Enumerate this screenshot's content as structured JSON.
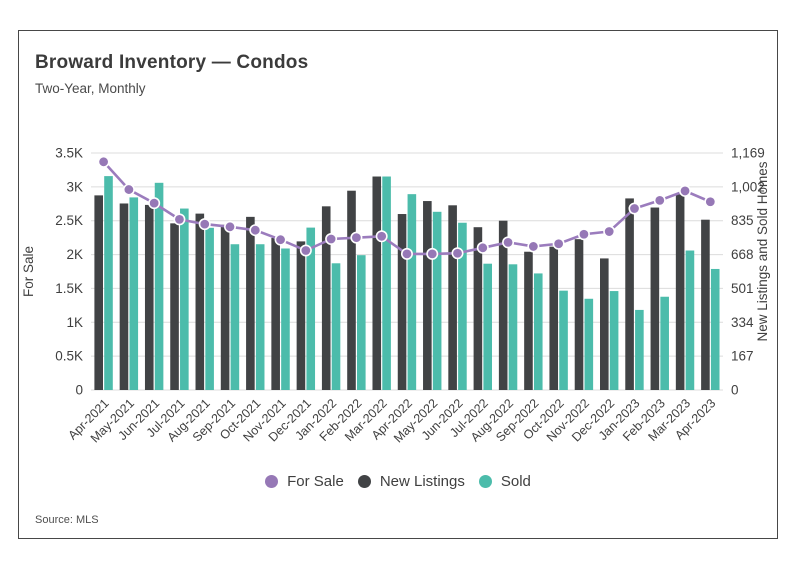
{
  "header": {
    "title": "Broward Inventory — Condos",
    "subtitle": "Two-Year, Monthly"
  },
  "source": "Source: MLS",
  "legend": [
    "For Sale",
    "New Listings",
    "Sold"
  ],
  "colors": {
    "for_sale": "#9b7cbd",
    "for_sale_marker": "#9678b6",
    "new_listings": "#414345",
    "sold": "#4cbcab",
    "gridline": "#dcdcdc",
    "axis_text": "#3f3f3f",
    "border": "#474747"
  },
  "chart_data": {
    "type": "bar",
    "title": "Broward Inventory — Condos",
    "subtitle": "Two-Year, Monthly",
    "grid": true,
    "legend_position": "bottom",
    "categories": [
      "Apr-2021",
      "May-2021",
      "Jun-2021",
      "Jul-2021",
      "Aug-2021",
      "Sep-2021",
      "Oct-2021",
      "Nov-2021",
      "Dec-2021",
      "Jan-2022",
      "Feb-2022",
      "Mar-2022",
      "Apr-2022",
      "May-2022",
      "Jun-2022",
      "Jul-2022",
      "Aug-2022",
      "Sep-2022",
      "Oct-2022",
      "Nov-2022",
      "Dec-2022",
      "Jan-2023",
      "Feb-2023",
      "Mar-2023",
      "Apr-2023"
    ],
    "series": [
      {
        "name": "For Sale",
        "type": "line",
        "axis": "left",
        "values": [
          3370,
          2960,
          2760,
          2520,
          2450,
          2410,
          2360,
          2220,
          2060,
          2230,
          2250,
          2270,
          2010,
          2010,
          2020,
          2100,
          2180,
          2120,
          2160,
          2300,
          2340,
          2680,
          2800,
          2940,
          2780
        ]
      },
      {
        "name": "New Listings",
        "type": "bar",
        "axis": "right",
        "values": [
          960,
          920,
          913,
          822,
          870,
          815,
          854,
          750,
          733,
          906,
          983,
          1053,
          868,
          932,
          911,
          803,
          835,
          682,
          707,
          744,
          649,
          945,
          900,
          965,
          840
        ]
      },
      {
        "name": "Sold",
        "type": "bar",
        "axis": "right",
        "values": [
          1055,
          950,
          1022,
          895,
          800,
          719,
          719,
          698,
          801,
          625,
          665,
          1053,
          966,
          879,
          825,
          623,
          620,
          575,
          490,
          450,
          488,
          395,
          460,
          688,
          597
        ]
      }
    ],
    "left_axis": {
      "title": "For Sale",
      "max": 3500,
      "ticks": [
        "0",
        "0.5K",
        "1K",
        "1.5K",
        "2K",
        "2.5K",
        "3K",
        "3.5K"
      ]
    },
    "right_axis": {
      "title": "New Listings and Sold Homes",
      "max": 1169,
      "ticks": [
        "0",
        "167",
        "334",
        "501",
        "668",
        "835",
        "1,002",
        "1,169"
      ]
    }
  }
}
